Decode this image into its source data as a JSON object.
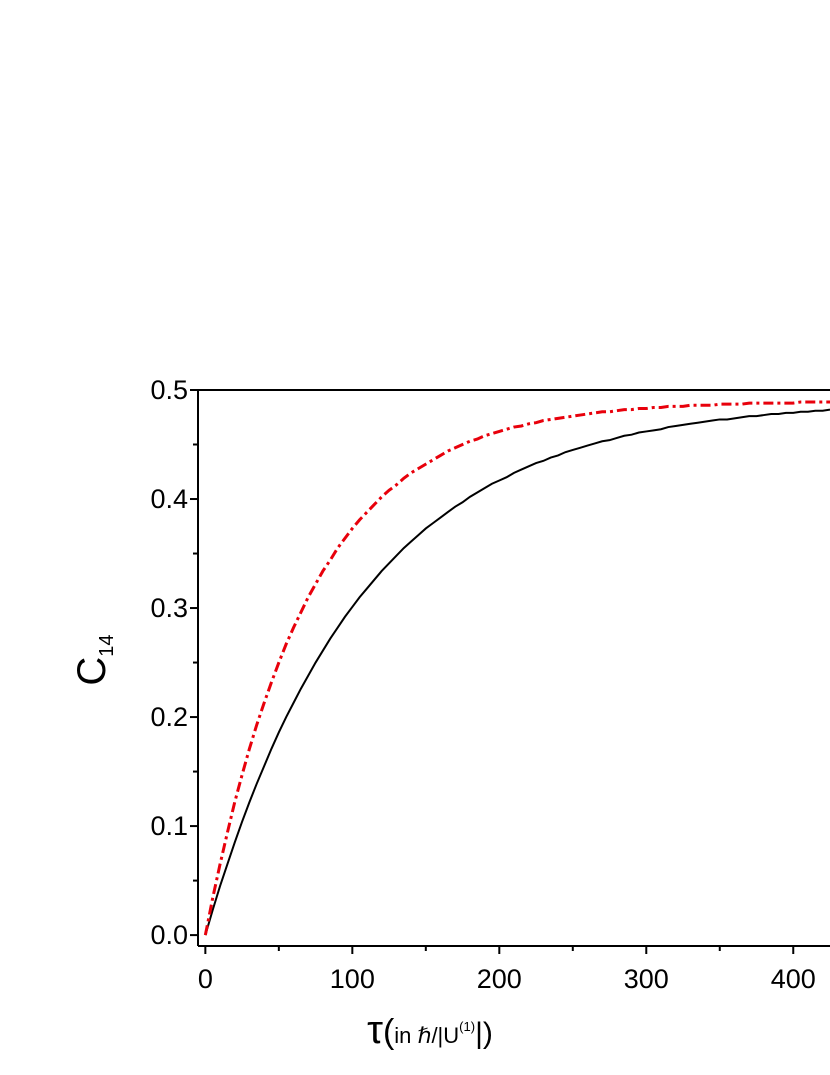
{
  "chart_data": {
    "type": "line",
    "x": [
      0,
      5,
      10,
      15,
      20,
      25,
      30,
      35,
      40,
      45,
      50,
      55,
      60,
      65,
      70,
      75,
      80,
      85,
      90,
      95,
      100,
      105,
      110,
      115,
      120,
      125,
      130,
      135,
      140,
      145,
      150,
      155,
      160,
      165,
      170,
      175,
      180,
      185,
      190,
      195,
      200,
      205,
      210,
      215,
      220,
      225,
      230,
      235,
      240,
      245,
      250,
      255,
      260,
      265,
      270,
      275,
      280,
      285,
      290,
      295,
      300,
      305,
      310,
      315,
      320,
      325,
      330,
      335,
      340,
      345,
      350,
      355,
      360,
      365,
      370,
      375,
      380,
      385,
      390,
      395,
      400,
      405,
      410,
      415,
      420,
      425
    ],
    "series": [
      {
        "color": "#000000",
        "style": "solid",
        "values": [
          0,
          0.023,
          0.045,
          0.065,
          0.085,
          0.104,
          0.122,
          0.139,
          0.155,
          0.171,
          0.186,
          0.2,
          0.213,
          0.226,
          0.238,
          0.25,
          0.261,
          0.272,
          0.282,
          0.292,
          0.301,
          0.31,
          0.318,
          0.326,
          0.334,
          0.341,
          0.348,
          0.355,
          0.361,
          0.367,
          0.373,
          0.378,
          0.383,
          0.388,
          0.393,
          0.397,
          0.402,
          0.406,
          0.41,
          0.414,
          0.417,
          0.42,
          0.424,
          0.427,
          0.43,
          0.433,
          0.435,
          0.438,
          0.44,
          0.443,
          0.445,
          0.447,
          0.449,
          0.451,
          0.453,
          0.454,
          0.456,
          0.458,
          0.459,
          0.461,
          0.462,
          0.463,
          0.464,
          0.466,
          0.467,
          0.468,
          0.469,
          0.47,
          0.471,
          0.472,
          0.473,
          0.473,
          0.474,
          0.475,
          0.476,
          0.476,
          0.477,
          0.478,
          0.478,
          0.479,
          0.479,
          0.48,
          0.48,
          0.481,
          0.481,
          0.482
        ]
      },
      {
        "color": "#e8000b",
        "style": "dashdot",
        "values": [
          0,
          0.034,
          0.065,
          0.094,
          0.122,
          0.147,
          0.171,
          0.193,
          0.213,
          0.232,
          0.25,
          0.267,
          0.282,
          0.296,
          0.31,
          0.322,
          0.334,
          0.344,
          0.355,
          0.364,
          0.373,
          0.381,
          0.388,
          0.395,
          0.402,
          0.408,
          0.413,
          0.419,
          0.424,
          0.428,
          0.432,
          0.436,
          0.44,
          0.444,
          0.447,
          0.45,
          0.453,
          0.455,
          0.458,
          0.46,
          0.462,
          0.464,
          0.466,
          0.467,
          0.469,
          0.47,
          0.472,
          0.473,
          0.474,
          0.475,
          0.476,
          0.477,
          0.478,
          0.479,
          0.48,
          0.48,
          0.481,
          0.482,
          0.482,
          0.483,
          0.483,
          0.484,
          0.484,
          0.485,
          0.485,
          0.485,
          0.486,
          0.486,
          0.486,
          0.486,
          0.487,
          0.487,
          0.487,
          0.487,
          0.488,
          0.488,
          0.488,
          0.488,
          0.488,
          0.488,
          0.488,
          0.489,
          0.489,
          0.489,
          0.489,
          0.489
        ]
      }
    ],
    "xlim": [
      -5,
      425
    ],
    "ylim": [
      -0.01,
      0.5
    ],
    "xticks": [
      0,
      100,
      200,
      300,
      400
    ],
    "xminor": [
      50,
      150,
      250,
      350
    ],
    "yticks": [
      {
        "value": 0,
        "label": "0.0"
      },
      0.1,
      0.2,
      0.3,
      0.4,
      0.5
    ],
    "yminor": [
      0.05,
      0.15,
      0.25,
      0.35,
      0.45
    ],
    "ylabel": {
      "main": "C",
      "sub": "14"
    },
    "xlabel": {
      "tau": "τ",
      "open": "(",
      "unit": "in ℏ/|U",
      "sup": "(1)",
      "close": "|)"
    }
  }
}
